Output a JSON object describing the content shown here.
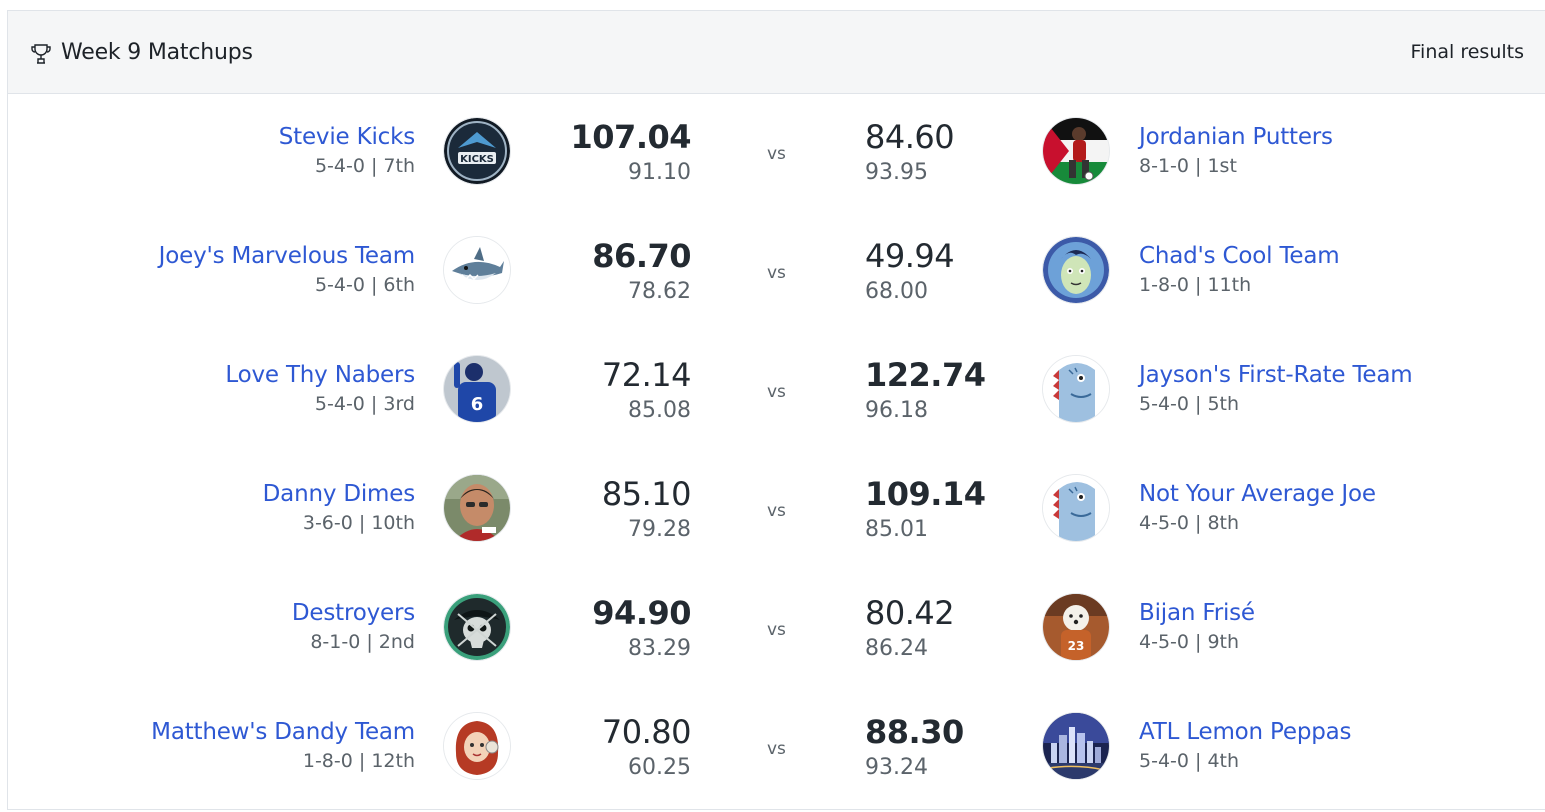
{
  "header": {
    "title": "Week 9 Matchups",
    "status": "Final results",
    "icon": "trophy-icon"
  },
  "vs_label": "vs",
  "matchups": [
    {
      "home": {
        "name": "Stevie Kicks",
        "record": "5-4-0 | 7th",
        "score": "107.04",
        "projected": "91.10",
        "winner": true,
        "avatar": "kicks-logo"
      },
      "away": {
        "name": "Jordanian Putters",
        "record": "8-1-0 | 1st",
        "score": "84.60",
        "projected": "93.95",
        "winner": false,
        "avatar": "golfer-flag"
      }
    },
    {
      "home": {
        "name": "Joey's Marvelous Team",
        "record": "5-4-0 | 6th",
        "score": "86.70",
        "projected": "78.62",
        "winner": true,
        "avatar": "shark"
      },
      "away": {
        "name": "Chad's Cool Team",
        "record": "1-8-0 | 11th",
        "score": "49.94",
        "projected": "68.00",
        "winner": false,
        "avatar": "cartoon-face"
      }
    },
    {
      "home": {
        "name": "Love Thy Nabers",
        "record": "5-4-0 | 3rd",
        "score": "72.14",
        "projected": "85.08",
        "winner": false,
        "avatar": "football-player-6"
      },
      "away": {
        "name": "Jayson's First-Rate Team",
        "record": "5-4-0 | 5th",
        "score": "122.74",
        "projected": "96.18",
        "winner": true,
        "avatar": "dino"
      }
    },
    {
      "home": {
        "name": "Danny Dimes",
        "record": "3-6-0 | 10th",
        "score": "85.10",
        "projected": "79.28",
        "winner": false,
        "avatar": "man-photo"
      },
      "away": {
        "name": "Not Your Average Joe",
        "record": "4-5-0 | 8th",
        "score": "109.14",
        "projected": "85.01",
        "winner": true,
        "avatar": "dino"
      }
    },
    {
      "home": {
        "name": "Destroyers",
        "record": "8-1-0 | 2nd",
        "score": "94.90",
        "projected": "83.29",
        "winner": true,
        "avatar": "pirate-skull"
      },
      "away": {
        "name": "Bijan Frisé",
        "record": "4-5-0 | 9th",
        "score": "80.42",
        "projected": "86.24",
        "winner": false,
        "avatar": "dog-player"
      }
    },
    {
      "home": {
        "name": "Matthew's Dandy Team",
        "record": "1-8-0 | 12th",
        "score": "70.80",
        "projected": "60.25",
        "winner": false,
        "avatar": "redhead-girl"
      },
      "away": {
        "name": "ATL Lemon Peppas",
        "record": "5-4-0 | 4th",
        "score": "88.30",
        "projected": "93.24",
        "winner": true,
        "avatar": "city-skyline"
      }
    }
  ]
}
